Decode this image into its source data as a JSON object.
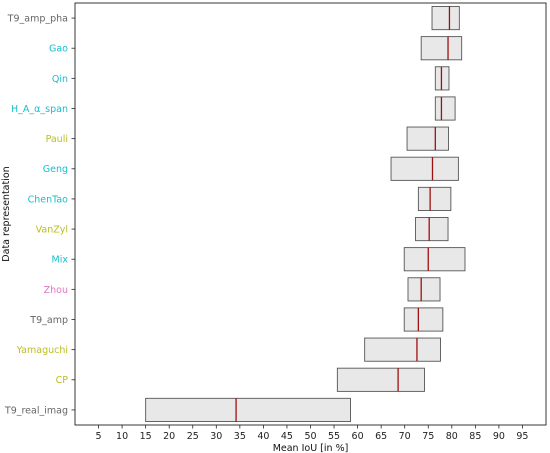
{
  "chart_data": {
    "type": "box",
    "orientation": "horizontal",
    "xlabel": "Mean IoU [in %]",
    "ylabel": "Data representation",
    "xlim": [
      0,
      100
    ],
    "xticks": [
      5,
      10,
      15,
      20,
      25,
      30,
      35,
      40,
      45,
      50,
      55,
      60,
      65,
      70,
      75,
      80,
      85,
      90,
      95
    ],
    "grid": false,
    "colors": {
      "box_fill": "#e8e8e8",
      "box_edge": "#555555",
      "median": "#a01010",
      "category_gray": "#666666",
      "category_cyan": "#17becf",
      "category_olive": "#bcbd22",
      "category_pink": "#e377c2"
    },
    "categories": [
      {
        "label": "T9_amp_pha",
        "color": "#666666",
        "q1": 75.8,
        "median": 79.5,
        "q3": 81.6
      },
      {
        "label": "Gao",
        "color": "#17becf",
        "q1": 73.5,
        "median": 79.2,
        "q3": 82.1
      },
      {
        "label": "Qin",
        "color": "#17becf",
        "q1": 76.5,
        "median": 77.8,
        "q3": 79.4
      },
      {
        "label": "H_A_α_span",
        "color": "#17becf",
        "q1": 76.5,
        "median": 77.8,
        "q3": 80.7
      },
      {
        "label": "Pauli",
        "color": "#bcbd22",
        "q1": 70.5,
        "median": 76.5,
        "q3": 79.3
      },
      {
        "label": "Geng",
        "color": "#17becf",
        "q1": 67.1,
        "median": 75.9,
        "q3": 81.4
      },
      {
        "label": "ChenTao",
        "color": "#17becf",
        "q1": 72.9,
        "median": 75.4,
        "q3": 79.8
      },
      {
        "label": "VanZyl",
        "color": "#bcbd22",
        "q1": 72.3,
        "median": 75.2,
        "q3": 79.2
      },
      {
        "label": "Mix",
        "color": "#17becf",
        "q1": 69.9,
        "median": 75.0,
        "q3": 82.8
      },
      {
        "label": "Zhou",
        "color": "#e377c2",
        "q1": 70.7,
        "median": 73.5,
        "q3": 77.5
      },
      {
        "label": "T9_amp",
        "color": "#666666",
        "q1": 69.9,
        "median": 72.9,
        "q3": 78.1
      },
      {
        "label": "Yamaguchi",
        "color": "#bcbd22",
        "q1": 61.5,
        "median": 72.6,
        "q3": 77.6
      },
      {
        "label": "CP",
        "color": "#bcbd22",
        "q1": 55.7,
        "median": 68.6,
        "q3": 74.2
      },
      {
        "label": "T9_real_imag",
        "color": "#666666",
        "q1": 15.0,
        "median": 34.2,
        "q3": 58.5
      }
    ]
  }
}
